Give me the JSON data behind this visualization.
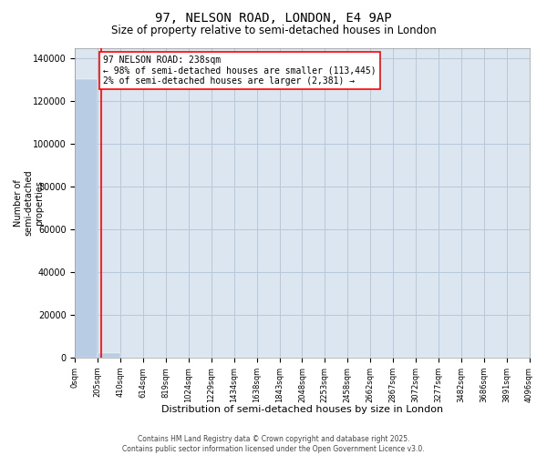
{
  "title": "97, NELSON ROAD, LONDON, E4 9AP",
  "subtitle": "Size of property relative to semi-detached houses in London",
  "xlabel": "Distribution of semi-detached houses by size in London",
  "ylabel": "Number of\nsemi-detached\nproperties",
  "property_size": 238,
  "annotation_line1": "97 NELSON ROAD: 238sqm",
  "annotation_line2": "← 98% of semi-detached houses are smaller (113,445)",
  "annotation_line3": "2% of semi-detached houses are larger (2,381) →",
  "bar_color": "#b8cce4",
  "highlight_color": "#ff0000",
  "annotation_box_color": "#ff0000",
  "background_color": "#ffffff",
  "plot_bg_color": "#dce6f1",
  "grid_color": "#b8c8d8",
  "ylim": [
    0,
    145000
  ],
  "bin_edges": [
    0,
    205,
    410,
    614,
    819,
    1024,
    1229,
    1434,
    1638,
    1843,
    2048,
    2253,
    2458,
    2662,
    2867,
    3072,
    3277,
    3482,
    3686,
    3891,
    4096
  ],
  "bin_labels": [
    "0sqm",
    "205sqm",
    "410sqm",
    "614sqm",
    "819sqm",
    "1024sqm",
    "1229sqm",
    "1434sqm",
    "1638sqm",
    "1843sqm",
    "2048sqm",
    "2253sqm",
    "2458sqm",
    "2662sqm",
    "2867sqm",
    "3072sqm",
    "3277sqm",
    "3482sqm",
    "3686sqm",
    "3891sqm",
    "4096sqm"
  ],
  "bar_heights": [
    130500,
    2381,
    0,
    0,
    0,
    0,
    0,
    0,
    0,
    0,
    0,
    0,
    0,
    0,
    0,
    0,
    0,
    0,
    0,
    0
  ],
  "highlight_bar_index": 1,
  "footer_line1": "Contains HM Land Registry data © Crown copyright and database right 2025.",
  "footer_line2": "Contains public sector information licensed under the Open Government Licence v3.0.",
  "yticks": [
    0,
    20000,
    40000,
    60000,
    80000,
    100000,
    120000,
    140000
  ],
  "title_fontsize": 10,
  "subtitle_fontsize": 8.5,
  "ylabel_fontsize": 7,
  "xlabel_fontsize": 8,
  "ytick_fontsize": 7,
  "xtick_fontsize": 6,
  "annotation_fontsize": 7,
  "footer_fontsize": 5.5
}
